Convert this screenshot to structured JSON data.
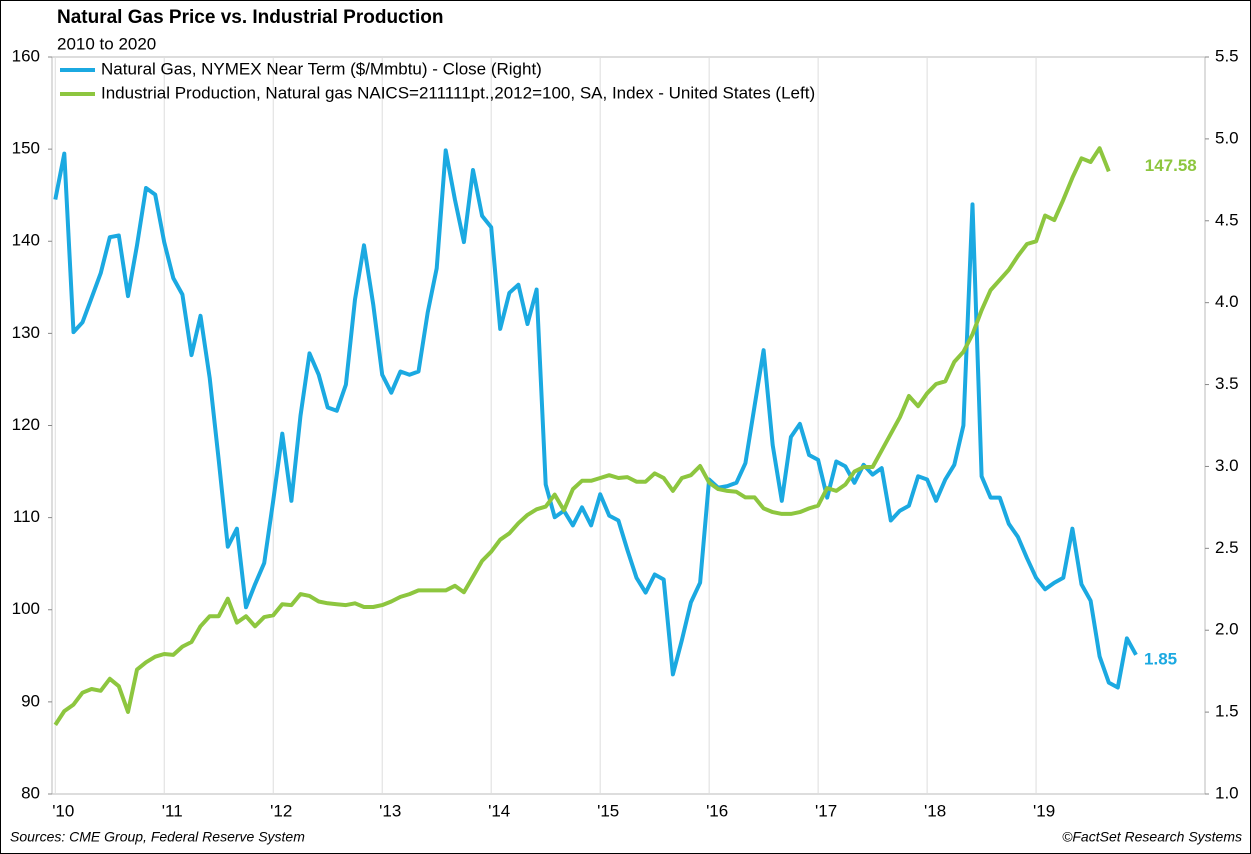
{
  "chart_data": {
    "type": "line",
    "title": "Natural Gas Price vs. Industrial Production",
    "subtitle": "2010 to 2020",
    "source": "Sources: CME Group, Federal Reserve System",
    "copyright": "©FactSet Research Systems",
    "x": [
      2010,
      2010.083,
      2010.167,
      2010.25,
      2010.333,
      2010.417,
      2010.5,
      2010.583,
      2010.667,
      2010.75,
      2010.833,
      2010.917,
      2011,
      2011.083,
      2011.167,
      2011.25,
      2011.333,
      2011.417,
      2011.5,
      2011.583,
      2011.667,
      2011.75,
      2011.833,
      2011.917,
      2012,
      2012.083,
      2012.167,
      2012.25,
      2012.333,
      2012.417,
      2012.5,
      2012.583,
      2012.667,
      2012.75,
      2012.833,
      2012.917,
      2013,
      2013.083,
      2013.167,
      2013.25,
      2013.333,
      2013.417,
      2013.5,
      2013.583,
      2013.667,
      2013.75,
      2013.833,
      2013.917,
      2014,
      2014.083,
      2014.167,
      2014.25,
      2014.333,
      2014.417,
      2014.5,
      2014.583,
      2014.667,
      2014.75,
      2014.833,
      2014.917,
      2015,
      2015.083,
      2015.167,
      2015.25,
      2015.333,
      2015.417,
      2015.5,
      2015.583,
      2015.667,
      2015.75,
      2015.833,
      2015.917,
      2016,
      2016.083,
      2016.167,
      2016.25,
      2016.333,
      2016.417,
      2016.5,
      2016.583,
      2016.667,
      2016.75,
      2016.833,
      2016.917,
      2017,
      2017.083,
      2017.167,
      2017.25,
      2017.333,
      2017.417,
      2017.5,
      2017.583,
      2017.667,
      2017.75,
      2017.833,
      2017.917,
      2018,
      2018.083,
      2018.167,
      2018.25,
      2018.333,
      2018.417,
      2018.5,
      2018.583,
      2018.667,
      2018.75,
      2018.833,
      2018.917,
      2019,
      2019.083,
      2019.167,
      2019.25,
      2019.333,
      2019.417,
      2019.5,
      2019.583,
      2019.667,
      2019.75,
      2019.833,
      2019.917
    ],
    "series": [
      {
        "name": "Natural Gas, NYMEX Near Term ($/Mmbtu) - Close (Right)",
        "color": "#1ba9e1",
        "axis": "y2",
        "values": [
          4.63,
          4.91,
          3.82,
          3.88,
          4.03,
          4.18,
          4.4,
          4.41,
          4.04,
          4.35,
          4.7,
          4.66,
          4.37,
          4.15,
          4.05,
          3.68,
          3.92,
          3.54,
          3.04,
          2.51,
          2.62,
          2.14,
          2.28,
          2.41,
          2.79,
          3.2,
          2.79,
          3.31,
          3.69,
          3.56,
          3.36,
          3.34,
          3.5,
          4.02,
          4.35,
          3.99,
          3.56,
          3.45,
          3.58,
          3.56,
          3.58,
          3.94,
          4.21,
          4.93,
          4.63,
          4.37,
          4.81,
          4.53,
          4.46,
          3.84,
          4.06,
          4.11,
          3.87,
          4.08,
          2.89,
          2.69,
          2.73,
          2.64,
          2.75,
          2.64,
          2.83,
          2.7,
          2.67,
          2.49,
          2.32,
          2.23,
          2.34,
          2.31,
          1.73,
          1.94,
          2.17,
          2.29,
          2.92,
          2.87,
          2.88,
          2.9,
          3.02,
          3.37,
          3.71,
          3.13,
          2.79,
          3.18,
          3.26,
          3.07,
          3.04,
          2.81,
          3.03,
          3.0,
          2.9,
          3.01,
          2.95,
          2.99,
          2.67,
          2.73,
          2.76,
          2.94,
          2.92,
          2.79,
          2.92,
          3.01,
          3.25,
          4.6,
          2.94,
          2.81,
          2.81,
          2.65,
          2.57,
          2.44,
          2.32,
          2.25,
          2.29,
          2.32,
          2.62,
          2.28,
          2.18,
          1.84,
          1.68,
          1.65,
          1.95,
          1.85
        ]
      },
      {
        "name": "Industrial Production, Natural gas NAICS=211111pt.,2012=100, SA, Index - United States (Left)",
        "color": "#8dc63f",
        "values": [
          87.5,
          89.0,
          89.7,
          91.0,
          91.4,
          91.2,
          92.5,
          91.7,
          88.9,
          93.5,
          94.3,
          94.9,
          95.2,
          95.1,
          96.0,
          96.5,
          98.2,
          99.3,
          99.3,
          101.2,
          98.6,
          99.3,
          98.2,
          99.2,
          99.4,
          100.6,
          100.5,
          101.7,
          101.5,
          100.9,
          100.7,
          100.6,
          100.5,
          100.7,
          100.3,
          100.3,
          100.5,
          100.9,
          101.4,
          101.7,
          102.1,
          102.1,
          102.1,
          102.1,
          102.6,
          101.9,
          103.6,
          105.3,
          106.3,
          107.6,
          108.3,
          109.4,
          110.3,
          110.9,
          111.2,
          112.5,
          110.8,
          113.1,
          114.0,
          114.0,
          114.3,
          114.6,
          114.3,
          114.4,
          113.9,
          113.9,
          114.8,
          114.3,
          112.9,
          114.3,
          114.6,
          115.6,
          113.8,
          113.1,
          112.9,
          112.8,
          112.2,
          112.2,
          111.0,
          110.6,
          110.4,
          110.4,
          110.6,
          111.0,
          111.3,
          113.2,
          112.9,
          113.6,
          115.0,
          115.5,
          115.5,
          117.3,
          119.1,
          120.9,
          123.2,
          122.1,
          123.5,
          124.5,
          124.8,
          126.9,
          128.0,
          129.9,
          132.5,
          134.7,
          135.8,
          136.9,
          138.4,
          139.7,
          140.0,
          142.8,
          142.3,
          144.5,
          146.9,
          149.0,
          148.6,
          150.1,
          147.58,
          null,
          null,
          null
        ]
      }
    ],
    "xlim": [
      2009.97,
      2020.55
    ],
    "xticks": [
      {
        "value": 2010,
        "label": "'10"
      },
      {
        "value": 2011,
        "label": "'11"
      },
      {
        "value": 2012,
        "label": "'12"
      },
      {
        "value": 2013,
        "label": "'13"
      },
      {
        "value": 2014,
        "label": "'14"
      },
      {
        "value": 2015,
        "label": "'15"
      },
      {
        "value": 2016,
        "label": "'16"
      },
      {
        "value": 2017,
        "label": "'17"
      },
      {
        "value": 2018,
        "label": "'18"
      },
      {
        "value": 2019,
        "label": "'19"
      }
    ],
    "ylim": [
      80,
      160
    ],
    "yticks": [
      80,
      90,
      100,
      110,
      120,
      130,
      140,
      150,
      160
    ],
    "y2lim": [
      1,
      5.5
    ],
    "y2ticks": [
      {
        "value": 1,
        "label": "1.0"
      },
      {
        "value": 1.5,
        "label": "1.5"
      },
      {
        "value": 2,
        "label": "2.0"
      },
      2.5,
      {
        "value": 3,
        "label": "3.0"
      },
      3.5,
      {
        "value": 4,
        "label": "4.0"
      },
      4.5,
      {
        "value": 5,
        "label": "5.0"
      },
      5.5
    ],
    "grid": true
  }
}
